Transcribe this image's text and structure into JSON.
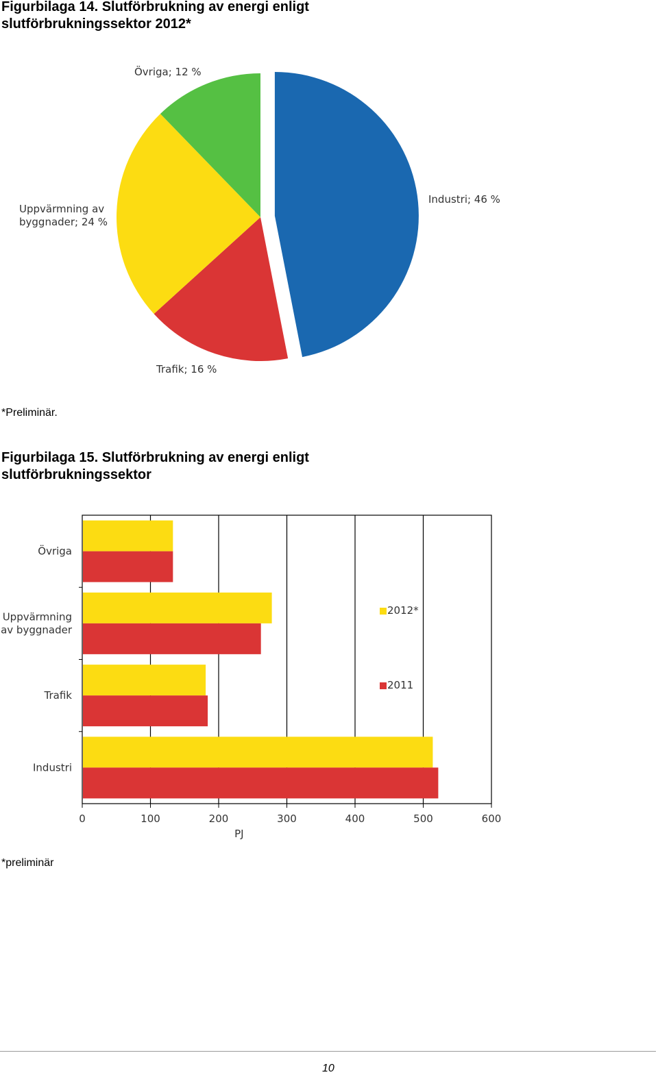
{
  "figures": [
    {
      "title_line1": "Figurbilaga 14. Slutförbrukning av energi enligt",
      "title_line2": "slutförbrukningssektor 2012*",
      "note": "*Preliminär."
    },
    {
      "title_line1": "Figurbilaga 15. Slutförbrukning av energi enligt",
      "title_line2": "slutförbrukningssektor",
      "note": "*preliminär"
    }
  ],
  "page_number": "10",
  "chart_data": [
    {
      "type": "pie",
      "slices": [
        {
          "name": "Industri",
          "value": 46,
          "label": "Industri; 46 %",
          "color": "#1a68b0",
          "exploded": true
        },
        {
          "name": "Trafik",
          "value": 16,
          "label": "Trafik; 16 %",
          "color": "#da3535"
        },
        {
          "name": "Uppvärmning av byggnader",
          "value": 24,
          "label_lines": [
            "Uppvärmning  av",
            "byggnader; 24 %"
          ],
          "color": "#fcdc12"
        },
        {
          "name": "Övriga",
          "value": 12,
          "label": "Övriga; 12 %",
          "color": "#55c043"
        }
      ]
    },
    {
      "type": "bar",
      "orientation": "horizontal",
      "categories": [
        "Övriga",
        "Uppvärmning av byggnader",
        "Trafik",
        "Industri"
      ],
      "category_label_lines": [
        [
          "Övriga"
        ],
        [
          "Uppvärmning",
          "av byggnader"
        ],
        [
          "Trafik"
        ],
        [
          "Industri"
        ]
      ],
      "series": [
        {
          "name": "2012*",
          "color": "#fcdc12",
          "values": [
            133,
            278,
            181,
            514
          ]
        },
        {
          "name": "2011",
          "color": "#da3535",
          "values": [
            133,
            262,
            184,
            522
          ]
        }
      ],
      "xlabel": "PJ",
      "xlim": [
        0,
        600
      ],
      "xticks": [
        "0",
        "100",
        "200",
        "300",
        "400",
        "500",
        "600"
      ],
      "grid": true,
      "legend_position": "right"
    }
  ]
}
